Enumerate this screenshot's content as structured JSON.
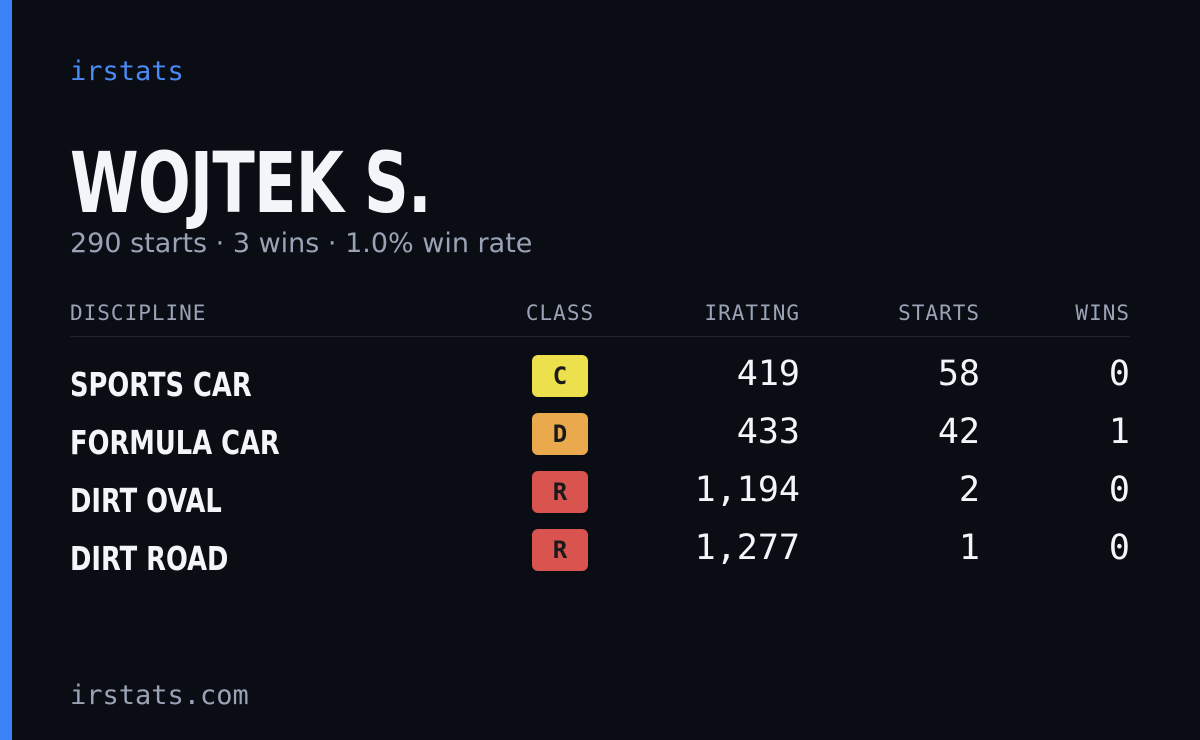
{
  "brand": "irstats",
  "name": "WOJTEK S.",
  "summary": "290 starts · 3 wins · 1.0% win rate",
  "table": {
    "headers": [
      "DISCIPLINE",
      "CLASS",
      "IRATING",
      "STARTS",
      "WINS"
    ],
    "rows": [
      [
        "SPORTS CAR",
        "C",
        "419",
        "58",
        "0"
      ],
      [
        "FORMULA CAR",
        "D",
        "433",
        "42",
        "1"
      ],
      [
        "DIRT OVAL",
        "R",
        "1,194",
        "2",
        "0"
      ],
      [
        "DIRT ROAD",
        "R",
        "1,277",
        "1",
        "0"
      ]
    ],
    "class_colors": {
      "C": "#ece04c",
      "D": "#eaa94c",
      "R": "#d9534f"
    }
  },
  "footer": "irstats.com"
}
